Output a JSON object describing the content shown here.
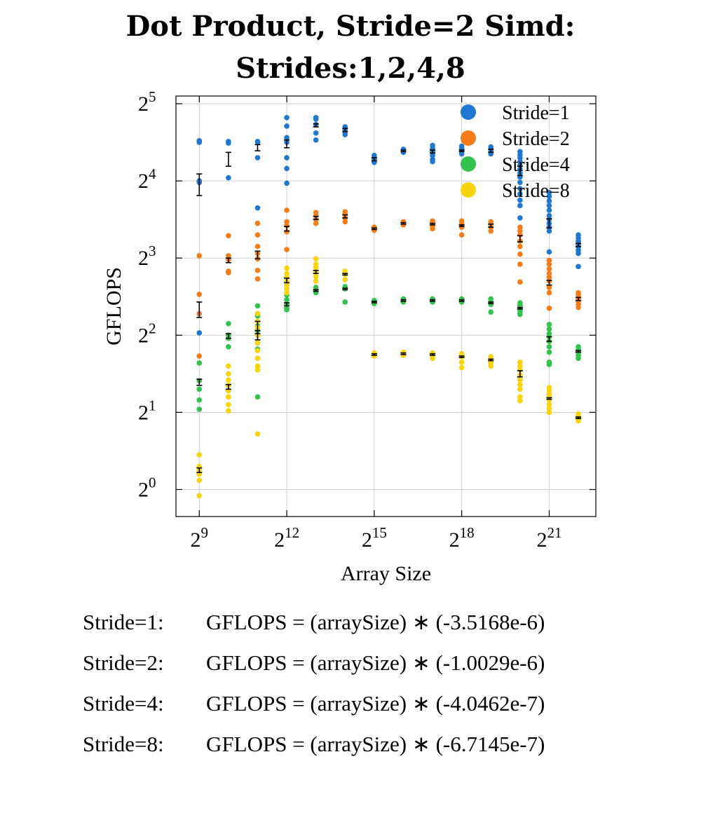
{
  "title_lines": [
    "Dot Product, Stride=2 Simd:",
    "Strides:1,2,4,8"
  ],
  "chart_data": {
    "type": "scatter",
    "title": "Dot Product, Stride=2 Simd: Strides:1,2,4,8",
    "xlabel": "Array Size",
    "ylabel": "GFLOPS",
    "xscale": "log2",
    "yscale": "log2",
    "xlim_log2": [
      8.2,
      22.6
    ],
    "ylim_log2": [
      -0.35,
      5.1
    ],
    "x_ticks": [
      {
        "base": "2",
        "exp": "9",
        "log2": 9
      },
      {
        "base": "2",
        "exp": "12",
        "log2": 12
      },
      {
        "base": "2",
        "exp": "15",
        "log2": 15
      },
      {
        "base": "2",
        "exp": "18",
        "log2": 18
      },
      {
        "base": "2",
        "exp": "21",
        "log2": 21
      }
    ],
    "y_ticks": [
      {
        "base": "2",
        "exp": "0",
        "log2": 0
      },
      {
        "base": "2",
        "exp": "1",
        "log2": 1
      },
      {
        "base": "2",
        "exp": "2",
        "log2": 2
      },
      {
        "base": "2",
        "exp": "3",
        "log2": 3
      },
      {
        "base": "2",
        "exp": "4",
        "log2": 4
      },
      {
        "base": "2",
        "exp": "5",
        "log2": 5
      }
    ],
    "grid": true,
    "legend_position": "top-right",
    "series": [
      {
        "name": "Stride=1",
        "color": "#1f77d0",
        "points": [
          {
            "x_log2": 9,
            "mean": 3.95,
            "err": 0.14,
            "samples": [
              4.52,
              4.5,
              4.0,
              3.98,
              2.03
            ]
          },
          {
            "x_log2": 10,
            "mean": 4.28,
            "err": 0.09,
            "samples": [
              4.51,
              4.49,
              4.04
            ]
          },
          {
            "x_log2": 11,
            "mean": 4.43,
            "err": 0.04,
            "samples": [
              4.51,
              4.5,
              4.3,
              3.65
            ]
          },
          {
            "x_log2": 12,
            "mean": 4.48,
            "err": 0.05,
            "samples": [
              4.82,
              4.71,
              4.56,
              4.5,
              4.3,
              4.16,
              3.97
            ]
          },
          {
            "x_log2": 13,
            "mean": 4.72,
            "err": 0.02,
            "samples": [
              4.82,
              4.8,
              4.73,
              4.62,
              4.53
            ]
          },
          {
            "x_log2": 14,
            "mean": 4.66,
            "err": 0.02,
            "samples": [
              4.7,
              4.67,
              4.63,
              4.6
            ]
          },
          {
            "x_log2": 15,
            "mean": 4.28,
            "err": 0.02,
            "samples": [
              4.33,
              4.3,
              4.28,
              4.24
            ]
          },
          {
            "x_log2": 16,
            "mean": 4.39,
            "err": 0.01,
            "samples": [
              4.41,
              4.39,
              4.37
            ]
          },
          {
            "x_log2": 17,
            "mean": 4.38,
            "err": 0.02,
            "samples": [
              4.46,
              4.42,
              4.38,
              4.33,
              4.28,
              4.25
            ]
          },
          {
            "x_log2": 18,
            "mean": 4.39,
            "err": 0.01,
            "samples": [
              4.45,
              4.42,
              4.38,
              4.35
            ]
          },
          {
            "x_log2": 19,
            "mean": 4.39,
            "err": 0.02,
            "samples": [
              4.44,
              4.41,
              4.38,
              4.35
            ]
          },
          {
            "x_log2": 20,
            "mean": 4.13,
            "err": 0.06,
            "samples": [
              4.38,
              4.34,
              4.3,
              4.25,
              4.2,
              4.15,
              4.1,
              4.05,
              3.98,
              3.9,
              3.83,
              3.75,
              3.68,
              3.52
            ]
          },
          {
            "x_log2": 21,
            "mean": 3.45,
            "err": 0.06,
            "samples": [
              3.85,
              3.8,
              3.74,
              3.68,
              3.62,
              3.55,
              3.5,
              3.45,
              3.4,
              3.35,
              3.08
            ]
          },
          {
            "x_log2": 22,
            "mean": 3.17,
            "err": 0.02,
            "samples": [
              3.3,
              3.26,
              3.22,
              3.18,
              3.14,
              3.1,
              3.06,
              2.89
            ]
          }
        ]
      },
      {
        "name": "Stride=2",
        "color": "#f47d1a",
        "points": [
          {
            "x_log2": 9,
            "mean": 2.33,
            "err": 0.1,
            "samples": [
              3.03,
              2.53,
              2.28,
              1.73
            ]
          },
          {
            "x_log2": 10,
            "mean": 2.97,
            "err": 0.03,
            "samples": [
              3.29,
              3.03,
              2.98,
              2.83,
              2.81
            ]
          },
          {
            "x_log2": 11,
            "mean": 3.04,
            "err": 0.05,
            "samples": [
              3.45,
              3.3,
              3.15,
              3.06,
              2.99,
              2.84,
              2.73
            ]
          },
          {
            "x_log2": 12,
            "mean": 3.38,
            "err": 0.03,
            "samples": [
              3.62,
              3.47,
              3.42,
              3.34,
              3.11
            ]
          },
          {
            "x_log2": 13,
            "mean": 3.52,
            "err": 0.02,
            "samples": [
              3.59,
              3.55,
              3.5,
              3.45
            ]
          },
          {
            "x_log2": 14,
            "mean": 3.54,
            "err": 0.02,
            "samples": [
              3.6,
              3.56,
              3.52,
              3.47
            ]
          },
          {
            "x_log2": 15,
            "mean": 3.38,
            "err": 0.01,
            "samples": [
              3.4,
              3.38,
              3.36
            ]
          },
          {
            "x_log2": 16,
            "mean": 3.45,
            "err": 0.01,
            "samples": [
              3.47,
              3.45,
              3.43
            ]
          },
          {
            "x_log2": 17,
            "mean": 3.44,
            "err": 0.01,
            "samples": [
              3.48,
              3.45,
              3.42,
              3.38
            ]
          },
          {
            "x_log2": 18,
            "mean": 3.42,
            "err": 0.01,
            "samples": [
              3.48,
              3.44,
              3.4,
              3.3
            ]
          },
          {
            "x_log2": 19,
            "mean": 3.42,
            "err": 0.02,
            "samples": [
              3.47,
              3.44,
              3.4,
              3.35
            ]
          },
          {
            "x_log2": 20,
            "mean": 3.25,
            "err": 0.04,
            "samples": [
              3.4,
              3.35,
              3.3,
              3.22,
              3.15,
              3.05,
              2.92,
              2.69
            ]
          },
          {
            "x_log2": 21,
            "mean": 2.68,
            "err": 0.03,
            "samples": [
              2.97,
              2.92,
              2.86,
              2.8,
              2.75,
              2.7,
              2.62,
              2.55,
              2.35
            ]
          },
          {
            "x_log2": 22,
            "mean": 2.47,
            "err": 0.02,
            "samples": [
              2.55,
              2.52,
              2.48,
              2.44,
              2.4,
              2.36
            ]
          }
        ]
      },
      {
        "name": "Stride=4",
        "color": "#33c24d",
        "points": [
          {
            "x_log2": 9,
            "mean": 1.39,
            "err": 0.04,
            "samples": [
              1.64,
              1.41,
              1.3,
              1.16,
              1.04
            ]
          },
          {
            "x_log2": 10,
            "mean": 1.99,
            "err": 0.03,
            "samples": [
              2.15,
              2.0,
              1.96,
              1.85
            ]
          },
          {
            "x_log2": 11,
            "mean": 2.0,
            "err": 0.06,
            "samples": [
              2.38,
              2.25,
              2.12,
              2.06,
              2.0,
              1.9,
              1.82,
              1.2
            ]
          },
          {
            "x_log2": 12,
            "mean": 2.4,
            "err": 0.02,
            "samples": [
              2.52,
              2.46,
              2.4,
              2.35,
              2.33
            ]
          },
          {
            "x_log2": 13,
            "mean": 2.58,
            "err": 0.01,
            "samples": [
              2.62,
              2.58,
              2.55
            ]
          },
          {
            "x_log2": 14,
            "mean": 2.6,
            "err": 0.01,
            "samples": [
              2.63,
              2.6,
              2.43
            ]
          },
          {
            "x_log2": 15,
            "mean": 2.43,
            "err": 0.01,
            "samples": [
              2.45,
              2.43,
              2.41
            ]
          },
          {
            "x_log2": 16,
            "mean": 2.45,
            "err": 0.01,
            "samples": [
              2.47,
              2.45,
              2.43
            ]
          },
          {
            "x_log2": 17,
            "mean": 2.45,
            "err": 0.01,
            "samples": [
              2.47,
              2.45,
              2.43
            ]
          },
          {
            "x_log2": 18,
            "mean": 2.45,
            "err": 0.01,
            "samples": [
              2.47,
              2.45,
              2.43
            ]
          },
          {
            "x_log2": 19,
            "mean": 2.42,
            "err": 0.01,
            "samples": [
              2.47,
              2.43,
              2.4,
              2.3
            ]
          },
          {
            "x_log2": 20,
            "mean": 2.35,
            "err": 0.01,
            "samples": [
              2.42,
              2.39,
              2.36,
              2.33,
              2.3,
              2.27
            ]
          },
          {
            "x_log2": 21,
            "mean": 1.95,
            "err": 0.03,
            "samples": [
              2.14,
              2.08,
              2.02,
              1.98,
              1.92,
              1.85,
              1.78,
              1.65,
              1.62
            ]
          },
          {
            "x_log2": 22,
            "mean": 1.79,
            "err": 0.01,
            "samples": [
              1.85,
              1.82,
              1.78,
              1.74,
              1.7
            ]
          }
        ]
      },
      {
        "name": "Stride=8",
        "color": "#f7d40e",
        "points": [
          {
            "x_log2": 9,
            "mean": 0.25,
            "err": 0.03,
            "samples": [
              0.45,
              0.3,
              0.25,
              0.2,
              0.12,
              -0.08
            ]
          },
          {
            "x_log2": 10,
            "mean": 1.33,
            "err": 0.03,
            "samples": [
              1.6,
              1.5,
              1.42,
              1.35,
              1.28,
              1.2,
              1.1,
              1.02
            ]
          },
          {
            "x_log2": 11,
            "mean": 2.1,
            "err": 0.08,
            "samples": [
              2.28,
              2.18,
              2.1,
              2.0,
              1.9,
              1.8,
              1.7,
              1.6,
              1.55,
              0.72
            ]
          },
          {
            "x_log2": 12,
            "mean": 2.71,
            "err": 0.03,
            "samples": [
              2.87,
              2.8,
              2.75,
              2.7,
              2.65,
              2.6,
              2.55
            ]
          },
          {
            "x_log2": 13,
            "mean": 2.82,
            "err": 0.02,
            "samples": [
              2.99,
              2.92,
              2.88,
              2.82,
              2.76,
              2.7
            ]
          },
          {
            "x_log2": 14,
            "mean": 2.79,
            "err": 0.01,
            "samples": [
              2.83,
              2.79,
              2.72
            ]
          },
          {
            "x_log2": 15,
            "mean": 1.75,
            "err": 0.01,
            "samples": [
              1.77,
              1.75,
              1.73
            ]
          },
          {
            "x_log2": 16,
            "mean": 1.76,
            "err": 0.01,
            "samples": [
              1.78,
              1.76,
              1.74
            ]
          },
          {
            "x_log2": 17,
            "mean": 1.75,
            "err": 0.01,
            "samples": [
              1.77,
              1.74,
              1.7
            ]
          },
          {
            "x_log2": 18,
            "mean": 1.72,
            "err": 0.01,
            "samples": [
              1.76,
              1.72,
              1.65,
              1.58
            ]
          },
          {
            "x_log2": 19,
            "mean": 1.68,
            "err": 0.01,
            "samples": [
              1.72,
              1.68,
              1.64,
              1.6
            ]
          },
          {
            "x_log2": 20,
            "mean": 1.5,
            "err": 0.04,
            "samples": [
              1.65,
              1.6,
              1.55,
              1.48,
              1.42,
              1.36,
              1.3,
              1.2,
              1.15
            ]
          },
          {
            "x_log2": 21,
            "mean": 1.18,
            "err": 0.01,
            "samples": [
              1.32,
              1.28,
              1.24,
              1.2,
              1.16,
              1.1,
              1.05,
              1.0
            ]
          },
          {
            "x_log2": 22,
            "mean": 0.93,
            "err": 0.01,
            "samples": [
              0.98,
              0.95,
              0.92,
              0.89
            ]
          }
        ]
      }
    ]
  },
  "equations": [
    {
      "label": "Stride=1:",
      "formula": "GFLOPS = (arraySize) ∗ (-3.5168e-6)"
    },
    {
      "label": "Stride=2:",
      "formula": "GFLOPS = (arraySize) ∗ (-1.0029e-6)"
    },
    {
      "label": "Stride=4:",
      "formula": "GFLOPS = (arraySize) ∗ (-4.0462e-7)"
    },
    {
      "label": "Stride=8:",
      "formula": "GFLOPS = (arraySize) ∗ (-6.7145e-7)"
    }
  ]
}
